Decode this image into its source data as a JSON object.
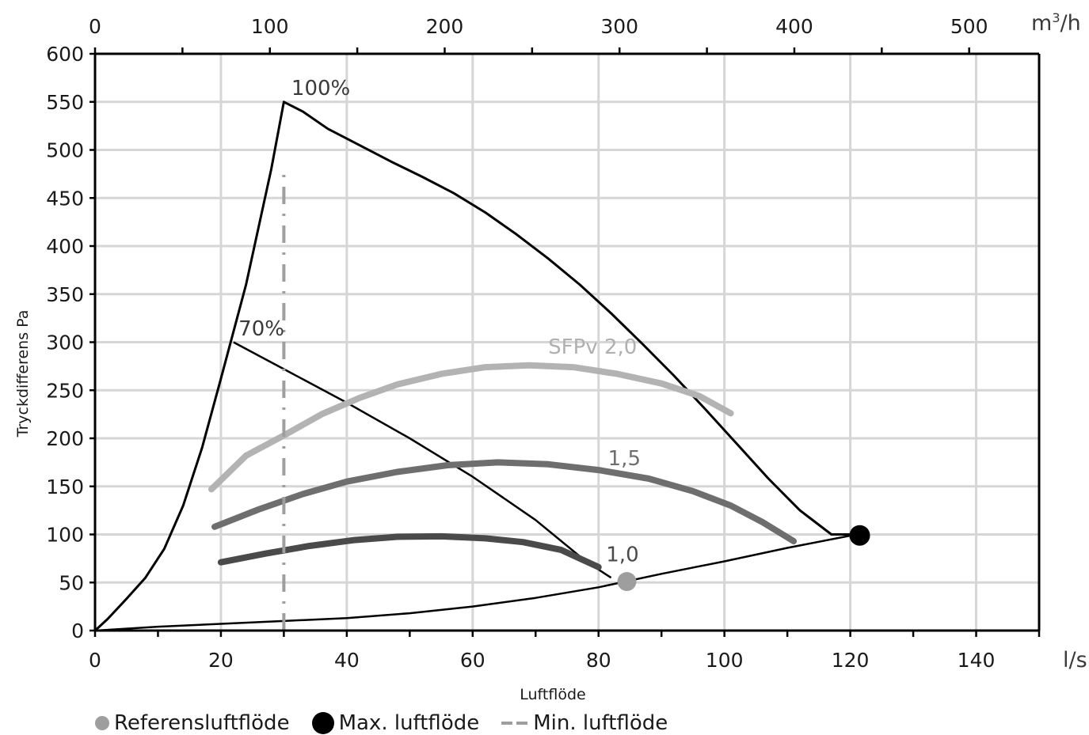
{
  "chart_data": {
    "type": "line",
    "x_unit_bottom": "l/s",
    "x_unit_top_base": "m",
    "x_unit_top_sup": "3",
    "x_unit_top_tail": "/h",
    "xlabel": "Luftflöde",
    "ylabel": "Tryckdifferens Pa",
    "xlim": [
      0,
      150
    ],
    "ylim": [
      0,
      600
    ],
    "x_ticks": [
      "0",
      "20",
      "40",
      "60",
      "80",
      "100",
      "120",
      "140"
    ],
    "y_ticks": [
      "0",
      "50",
      "100",
      "150",
      "200",
      "250",
      "300",
      "350",
      "400",
      "450",
      "500",
      "550",
      "600"
    ],
    "top_ticks": [
      "0",
      "100",
      "200",
      "300",
      "400",
      "500"
    ],
    "grid": true,
    "series": [
      {
        "label": "100%",
        "color": "#000000",
        "style": "fan-curve-max",
        "points": [
          [
            0,
            0
          ],
          [
            2,
            12
          ],
          [
            5,
            33
          ],
          [
            8,
            55
          ],
          [
            11,
            85
          ],
          [
            14,
            130
          ],
          [
            17,
            190
          ],
          [
            20,
            262
          ],
          [
            24,
            360
          ],
          [
            28,
            480
          ],
          [
            30,
            550
          ],
          [
            33,
            540
          ],
          [
            37,
            522
          ],
          [
            42,
            505
          ],
          [
            47,
            488
          ],
          [
            52,
            472
          ],
          [
            57,
            455
          ],
          [
            62,
            435
          ],
          [
            67,
            412
          ],
          [
            72,
            387
          ],
          [
            77,
            360
          ],
          [
            82,
            330
          ],
          [
            87,
            298
          ],
          [
            92,
            265
          ],
          [
            97,
            230
          ],
          [
            102,
            194
          ],
          [
            107,
            158
          ],
          [
            112,
            125
          ],
          [
            117,
            100
          ],
          [
            121,
            100
          ]
        ]
      },
      {
        "label": "70%",
        "color": "#000000",
        "style": "fan-curve-70",
        "points": [
          [
            22,
            300
          ],
          [
            30,
            272
          ],
          [
            40,
            237
          ],
          [
            50,
            200
          ],
          [
            60,
            160
          ],
          [
            70,
            115
          ],
          [
            78,
            72
          ],
          [
            82,
            55
          ]
        ]
      },
      {
        "label": "",
        "color": "#000000",
        "style": "system-curve",
        "points": [
          [
            0,
            0
          ],
          [
            10,
            4
          ],
          [
            20,
            7
          ],
          [
            30,
            10
          ],
          [
            40,
            13
          ],
          [
            50,
            18
          ],
          [
            60,
            25
          ],
          [
            70,
            34
          ],
          [
            80,
            45
          ],
          [
            90,
            59
          ],
          [
            100,
            72
          ],
          [
            110,
            86
          ],
          [
            121,
            100
          ]
        ]
      },
      {
        "label": "SFPv 2,0",
        "color": "#b3b3b3",
        "style": "sfp",
        "points": [
          [
            18.5,
            147
          ],
          [
            24,
            182
          ],
          [
            30,
            203
          ],
          [
            36,
            225
          ],
          [
            42,
            242
          ],
          [
            48,
            256
          ],
          [
            55,
            267
          ],
          [
            62,
            274
          ],
          [
            69,
            276
          ],
          [
            76,
            274
          ],
          [
            83,
            267
          ],
          [
            90,
            257
          ],
          [
            96,
            244
          ],
          [
            101,
            226
          ]
        ]
      },
      {
        "label": "1,5",
        "color": "#6e6e6e",
        "style": "sfp",
        "points": [
          [
            19,
            108
          ],
          [
            26,
            126
          ],
          [
            33,
            142
          ],
          [
            40,
            155
          ],
          [
            48,
            165
          ],
          [
            56,
            172
          ],
          [
            64,
            175
          ],
          [
            72,
            173
          ],
          [
            80,
            167
          ],
          [
            88,
            158
          ],
          [
            95,
            145
          ],
          [
            101,
            130
          ],
          [
            106,
            113
          ],
          [
            111,
            93
          ]
        ]
      },
      {
        "label": "1,0",
        "color": "#4a4a4a",
        "style": "sfp",
        "points": [
          [
            20,
            71
          ],
          [
            27,
            80
          ],
          [
            34,
            88
          ],
          [
            41,
            94
          ],
          [
            48,
            97.5
          ],
          [
            55,
            98
          ],
          [
            62,
            96
          ],
          [
            68,
            92
          ],
          [
            74,
            84
          ],
          [
            80,
            66
          ]
        ]
      },
      {
        "label": "",
        "color": "#9e9e9e",
        "style": "min-flow",
        "points": [
          [
            30,
            0
          ],
          [
            30,
            480
          ]
        ]
      }
    ],
    "markers": [
      {
        "name": "reference-airflow",
        "x": 84.5,
        "y": 51,
        "color": "#9e9e9e"
      },
      {
        "name": "max-airflow",
        "x": 121.5,
        "y": 99,
        "color": "#000000"
      }
    ],
    "annotations": [
      {
        "text": "100%",
        "x": 31.2,
        "y": 557,
        "color": "#3a3a3a"
      },
      {
        "text": "70%",
        "x": 22.8,
        "y": 307,
        "color": "#3a3a3a"
      },
      {
        "text": "SFPv 2,0",
        "x": 72.0,
        "y": 288,
        "color": "#b0b0b0"
      },
      {
        "text": "1,5",
        "x": 81.5,
        "y": 172,
        "color": "#6e6e6e"
      },
      {
        "text": "1,0",
        "x": 81.2,
        "y": 72,
        "color": "#4a4a4a"
      }
    ],
    "legend": [
      {
        "label": "Referensluftflöde",
        "marker": "dot-grey"
      },
      {
        "label": "Max. luftflöde",
        "marker": "dot-black"
      },
      {
        "label": "Min. luftflöde",
        "marker": "dashdot-grey"
      }
    ],
    "legend_position": "bottom"
  }
}
